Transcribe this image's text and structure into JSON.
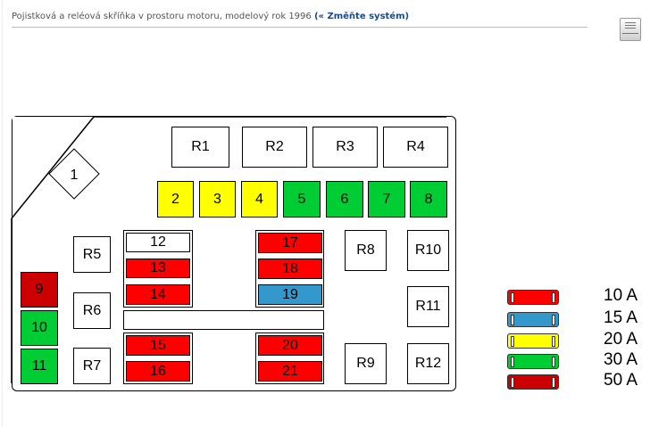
{
  "header": {
    "title": "Pojistková a reléová skříňka v prostoru motoru, modelový rok 1996",
    "link": "(« Změňte systém)",
    "print_icon": "printer-icon"
  },
  "colors": {
    "10A": "#ff0000",
    "15A": "#3399cc",
    "20A": "#ffff00",
    "30A": "#00cc33",
    "50A": "#cc0000"
  },
  "diamond": {
    "label": "1"
  },
  "relays": [
    "R1",
    "R2",
    "R3",
    "R4",
    "R5",
    "R6",
    "R7",
    "R8",
    "R9",
    "R10",
    "R11",
    "R12"
  ],
  "fuses": [
    {
      "label": "2",
      "rating": "20A"
    },
    {
      "label": "3",
      "rating": "20A"
    },
    {
      "label": "4",
      "rating": "20A"
    },
    {
      "label": "5",
      "rating": "30A"
    },
    {
      "label": "6",
      "rating": "30A"
    },
    {
      "label": "7",
      "rating": "30A"
    },
    {
      "label": "8",
      "rating": "30A"
    },
    {
      "label": "9",
      "rating": "50A"
    },
    {
      "label": "10",
      "rating": "30A"
    },
    {
      "label": "11",
      "rating": "30A"
    },
    {
      "label": "12",
      "rating": "empty"
    },
    {
      "label": "13",
      "rating": "10A"
    },
    {
      "label": "14",
      "rating": "10A"
    },
    {
      "label": "15",
      "rating": "10A"
    },
    {
      "label": "16",
      "rating": "10A"
    },
    {
      "label": "17",
      "rating": "10A"
    },
    {
      "label": "18",
      "rating": "10A"
    },
    {
      "label": "19",
      "rating": "15A"
    },
    {
      "label": "20",
      "rating": "10A"
    },
    {
      "label": "21",
      "rating": "10A"
    }
  ],
  "legend": [
    {
      "label": "10 A",
      "color": "#ff0000"
    },
    {
      "label": "15 A",
      "color": "#3399cc"
    },
    {
      "label": "20 A",
      "color": "#ffff00"
    },
    {
      "label": "30 A",
      "color": "#00cc33"
    },
    {
      "label": "50 A",
      "color": "#cc0000"
    }
  ]
}
